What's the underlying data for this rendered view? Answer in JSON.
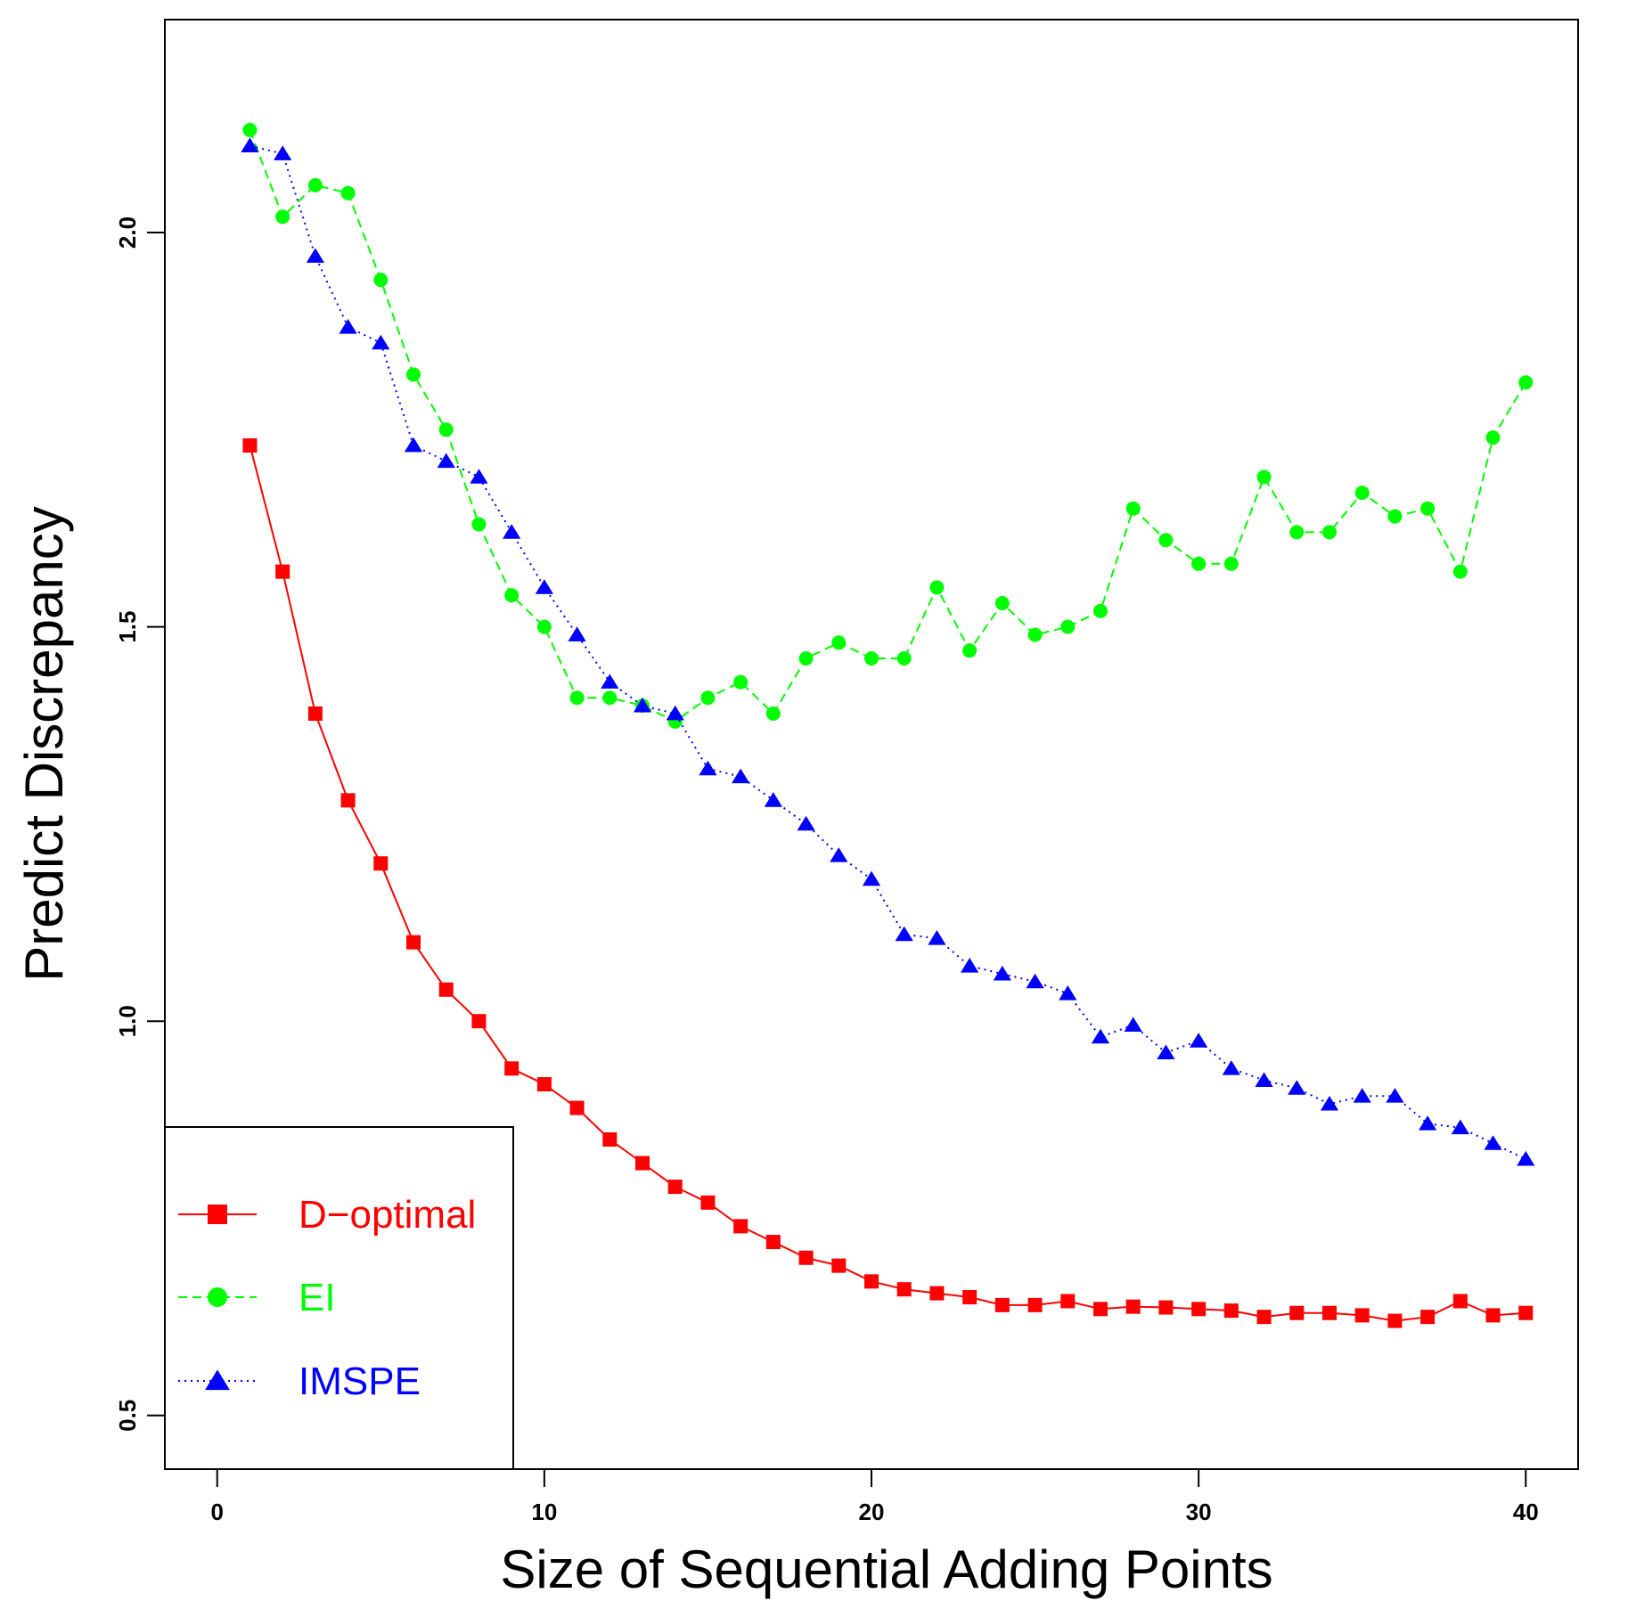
{
  "chart_data": {
    "type": "line",
    "title": "",
    "xlabel": "Size of Sequential Adding Points",
    "ylabel": "Predict Discrepancy",
    "xlim": [
      -1.6,
      41.6
    ],
    "ylim": [
      0.432,
      2.27
    ],
    "xticks": [
      0,
      10,
      20,
      30,
      40
    ],
    "xtick_labels": [
      "0",
      "10",
      "20",
      "30",
      "40"
    ],
    "yticks": [
      0.5,
      1.0,
      1.5,
      2.0
    ],
    "ytick_labels": [
      "0.5",
      "1.0",
      "1.5",
      "2.0"
    ],
    "grid": false,
    "legend_position": "bottom-left",
    "x": [
      1,
      2,
      3,
      4,
      5,
      6,
      7,
      8,
      9,
      10,
      11,
      12,
      13,
      14,
      15,
      16,
      17,
      18,
      19,
      20,
      21,
      22,
      23,
      24,
      25,
      26,
      27,
      28,
      29,
      30,
      31,
      32,
      33,
      34,
      35,
      36,
      37,
      38,
      39,
      40
    ],
    "series": [
      {
        "name": "D−optimal",
        "color": "#ff0000",
        "line_style": "solid",
        "marker": "square",
        "values": [
          1.73,
          1.57,
          1.39,
          1.28,
          1.2,
          1.1,
          1.04,
          1.0,
          0.94,
          0.92,
          0.89,
          0.85,
          0.82,
          0.79,
          0.77,
          0.74,
          0.72,
          0.7,
          0.69,
          0.67,
          0.66,
          0.655,
          0.65,
          0.64,
          0.64,
          0.645,
          0.635,
          0.638,
          0.637,
          0.635,
          0.633,
          0.625,
          0.63,
          0.63,
          0.627,
          0.62,
          0.625,
          0.645,
          0.627,
          0.63
        ]
      },
      {
        "name": "EI",
        "color": "#00ff00",
        "line_style": "dashed",
        "marker": "circle",
        "values": [
          2.13,
          2.02,
          2.06,
          2.05,
          1.94,
          1.82,
          1.75,
          1.63,
          1.54,
          1.5,
          1.41,
          1.41,
          1.4,
          1.38,
          1.41,
          1.43,
          1.39,
          1.46,
          1.48,
          1.46,
          1.46,
          1.55,
          1.47,
          1.53,
          1.49,
          1.5,
          1.52,
          1.65,
          1.61,
          1.58,
          1.58,
          1.69,
          1.62,
          1.62,
          1.67,
          1.64,
          1.65,
          1.57,
          1.74,
          1.81
        ]
      },
      {
        "name": "IMSPE",
        "color": "#0000ff",
        "line_style": "dotted",
        "marker": "triangle",
        "values": [
          2.11,
          2.1,
          1.97,
          1.88,
          1.86,
          1.73,
          1.71,
          1.69,
          1.62,
          1.55,
          1.49,
          1.43,
          1.4,
          1.39,
          1.32,
          1.31,
          1.28,
          1.25,
          1.21,
          1.18,
          1.11,
          1.105,
          1.07,
          1.06,
          1.05,
          1.035,
          0.98,
          0.995,
          0.96,
          0.975,
          0.94,
          0.925,
          0.915,
          0.895,
          0.905,
          0.905,
          0.87,
          0.865,
          0.845,
          0.825
        ]
      }
    ]
  }
}
